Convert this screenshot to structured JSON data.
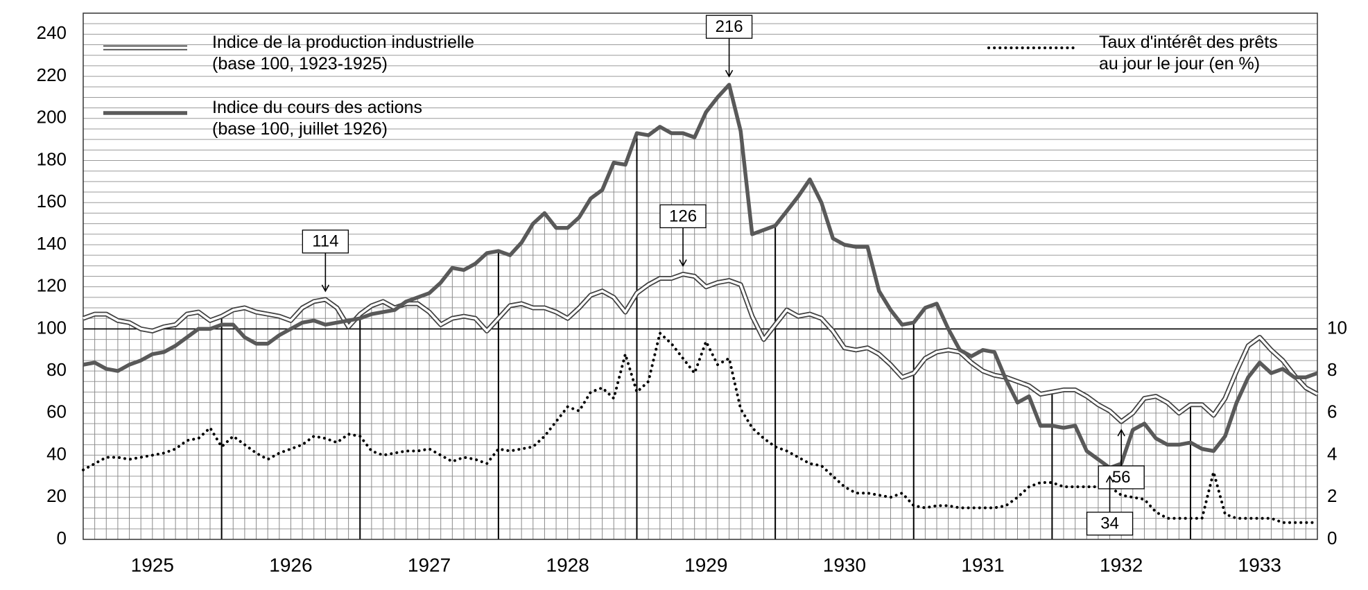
{
  "chart_data": {
    "type": "line",
    "x": [
      1925,
      1925.0833,
      1925.1667,
      1925.25,
      1925.3333,
      1925.4167,
      1925.5,
      1925.5833,
      1925.6667,
      1925.75,
      1925.8333,
      1925.9167,
      1926,
      1926.0833,
      1926.1667,
      1926.25,
      1926.3333,
      1926.4167,
      1926.5,
      1926.5833,
      1926.6667,
      1926.75,
      1926.8333,
      1926.9167,
      1927,
      1927.0833,
      1927.1667,
      1927.25,
      1927.3333,
      1927.4167,
      1927.5,
      1927.5833,
      1927.6667,
      1927.75,
      1927.8333,
      1927.9167,
      1928,
      1928.0833,
      1928.1667,
      1928.25,
      1928.3333,
      1928.4167,
      1928.5,
      1928.5833,
      1928.6667,
      1928.75,
      1928.8333,
      1928.9167,
      1929,
      1929.0833,
      1929.1667,
      1929.25,
      1929.3333,
      1929.4167,
      1929.5,
      1929.5833,
      1929.6667,
      1929.75,
      1929.8333,
      1929.9167,
      1930,
      1930.0833,
      1930.1667,
      1930.25,
      1930.3333,
      1930.4167,
      1930.5,
      1930.5833,
      1930.6667,
      1930.75,
      1930.8333,
      1930.9167,
      1931,
      1931.0833,
      1931.1667,
      1931.25,
      1931.3333,
      1931.4167,
      1931.5,
      1931.5833,
      1931.6667,
      1931.75,
      1931.8333,
      1931.9167,
      1932,
      1932.0833,
      1932.1667,
      1932.25,
      1932.3333,
      1932.4167,
      1932.5,
      1932.5833,
      1932.6667,
      1932.75,
      1932.8333,
      1932.9167,
      1933,
      1933.0833,
      1933.1667,
      1933.25,
      1933.3333,
      1933.4167,
      1933.5,
      1933.5833,
      1933.6667,
      1933.75,
      1933.8333,
      1933.9167
    ],
    "series": [
      {
        "name": "Indice de la production industrielle\n(base 100, 1923-1925)",
        "color": "#404040",
        "line_style": "double",
        "values": [
          105,
          107,
          107,
          104,
          103,
          100,
          99,
          101,
          102,
          107,
          108,
          104,
          106,
          109,
          110,
          108,
          107,
          106,
          104,
          110,
          113,
          114,
          110,
          101,
          107,
          111,
          113,
          110,
          112,
          112,
          108,
          102,
          105,
          106,
          105,
          99,
          105,
          111,
          112,
          110,
          110,
          108,
          105,
          110,
          116,
          118,
          115,
          108,
          117,
          121,
          124,
          124,
          126,
          125,
          120,
          122,
          123,
          121,
          106,
          95,
          102,
          109,
          106,
          107,
          105,
          99,
          91,
          90,
          91,
          88,
          83,
          77,
          79,
          86,
          89,
          90,
          89,
          84,
          80,
          78,
          77,
          75,
          73,
          69,
          70,
          71,
          71,
          68,
          64,
          61,
          56,
          60,
          67,
          68,
          65,
          60,
          64,
          64,
          59,
          67,
          80,
          92,
          96,
          90,
          85,
          78,
          72,
          69
        ]
      },
      {
        "name": "Indice du cours des actions\n(base 100, juillet 1926)",
        "color": "#595959",
        "line_style": "solid",
        "values": [
          83,
          84,
          81,
          80,
          83,
          85,
          88,
          89,
          92,
          96,
          100,
          100,
          102,
          102,
          96,
          93,
          93,
          97,
          100,
          103,
          104,
          102,
          103,
          104,
          105,
          107,
          108,
          109,
          113,
          115,
          117,
          122,
          129,
          128,
          131,
          136,
          137,
          135,
          141,
          150,
          155,
          148,
          148,
          153,
          162,
          166,
          179,
          178,
          193,
          192,
          196,
          193,
          193,
          191,
          203,
          210,
          216,
          194,
          145,
          147,
          149,
          156,
          163,
          171,
          160,
          143,
          140,
          139,
          139,
          118,
          109,
          102,
          103,
          110,
          112,
          100,
          90,
          87,
          90,
          89,
          76,
          65,
          68,
          54,
          54,
          53,
          54,
          42,
          38,
          34,
          36,
          52,
          55,
          48,
          45,
          45,
          46,
          43,
          42,
          49,
          65,
          77,
          84,
          79,
          81,
          77,
          77,
          79
        ]
      },
      {
        "name": "Taux d'intérêt des prêts\nau jour le jour (en %)",
        "color": "#000000",
        "line_style": "dotted",
        "axis": "y2",
        "values": [
          3.3,
          3.6,
          3.9,
          3.9,
          3.8,
          3.9,
          4.0,
          4.1,
          4.3,
          4.7,
          4.8,
          5.3,
          4.4,
          4.9,
          4.5,
          4.1,
          3.8,
          4.1,
          4.3,
          4.5,
          4.9,
          4.8,
          4.6,
          5.0,
          4.9,
          4.2,
          4.0,
          4.1,
          4.2,
          4.2,
          4.3,
          4.0,
          3.7,
          3.9,
          3.8,
          3.6,
          4.3,
          4.2,
          4.3,
          4.4,
          4.9,
          5.6,
          6.3,
          6.1,
          7.0,
          7.2,
          6.7,
          8.8,
          7.0,
          7.5,
          9.8,
          9.3,
          8.6,
          7.9,
          9.4,
          8.3,
          8.6,
          6.2,
          5.3,
          4.8,
          4.4,
          4.2,
          3.9,
          3.6,
          3.5,
          3.0,
          2.5,
          2.2,
          2.2,
          2.1,
          2.0,
          2.2,
          1.6,
          1.5,
          1.6,
          1.6,
          1.5,
          1.5,
          1.5,
          1.5,
          1.6,
          2.0,
          2.5,
          2.7,
          2.7,
          2.5,
          2.5,
          2.5,
          2.5,
          2.5,
          2.1,
          2.0,
          1.9,
          1.3,
          1.0,
          1.0,
          1.0,
          1.0,
          3.2,
          1.2,
          1.0,
          1.0,
          1.0,
          1.0,
          0.8,
          0.8,
          0.8,
          0.8
        ]
      }
    ],
    "xlim": [
      1925,
      1933.9167
    ],
    "xticks": [
      {
        "value": 1925.5,
        "label": "1925"
      },
      {
        "value": 1926.5,
        "label": "1926"
      },
      {
        "value": 1927.5,
        "label": "1927"
      },
      {
        "value": 1928.5,
        "label": "1928"
      },
      {
        "value": 1929.5,
        "label": "1929"
      },
      {
        "value": 1930.5,
        "label": "1930"
      },
      {
        "value": 1931.5,
        "label": "1931"
      },
      {
        "value": 1932.5,
        "label": "1932"
      },
      {
        "value": 1933.5,
        "label": "1933"
      }
    ],
    "x_major_lines": [
      1926,
      1927,
      1928,
      1929,
      1930,
      1931,
      1932,
      1933
    ],
    "ylim": [
      0,
      250
    ],
    "yticks": [
      0,
      20,
      40,
      60,
      80,
      100,
      120,
      140,
      160,
      180,
      200,
      220,
      240
    ],
    "y2lim": [
      0,
      25
    ],
    "y2ticks": [
      0,
      2,
      4,
      6,
      8,
      10
    ],
    "ygrid_step": 5,
    "reference_line": 100,
    "annotations": [
      "216",
      "114",
      "126",
      "56",
      "34"
    ]
  }
}
